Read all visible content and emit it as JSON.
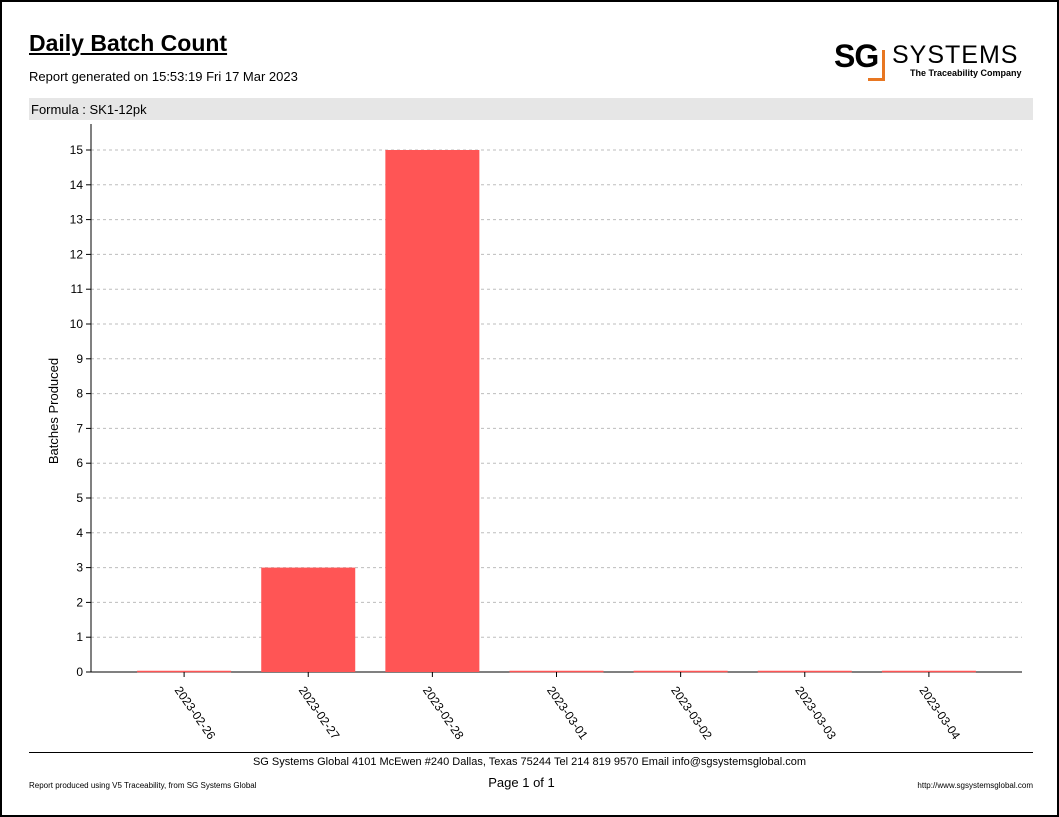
{
  "report": {
    "title": "Daily Batch Count",
    "generated": "Report generated on 15:53:19 Fri 17 Mar 2023",
    "formula": "Formula : SK1-12pk"
  },
  "logo": {
    "mark": "SG",
    "name": "SYSTEMS",
    "tagline": "The Traceability Company"
  },
  "footer": {
    "address": "SG Systems Global 4101 McEwen #240 Dallas, Texas 75244 Tel 214 819 9570 Email info@sgsystemsglobal.com",
    "page": "Page 1 of 1",
    "produced": "Report produced using V5 Traceability, from SG Systems Global",
    "url": "http://www.sgsystemsglobal.com"
  },
  "colors": {
    "bar": "#ff5555",
    "logo_accent": "#e87722",
    "formula_band": "#e6e6e6"
  },
  "chart_data": {
    "type": "bar",
    "categories": [
      "2023-02-26",
      "2023-02-27",
      "2023-02-28",
      "2023-03-01",
      "2023-03-02",
      "2023-03-03",
      "2023-03-04"
    ],
    "values": [
      0,
      3,
      15,
      0,
      0,
      0,
      0
    ],
    "ylabel": "Batches Produced",
    "xlabel": "",
    "ylim": [
      0,
      15
    ],
    "yticks": [
      0,
      1,
      2,
      3,
      4,
      5,
      6,
      7,
      8,
      9,
      10,
      11,
      12,
      13,
      14,
      15
    ],
    "grid": true,
    "legend": "none"
  }
}
